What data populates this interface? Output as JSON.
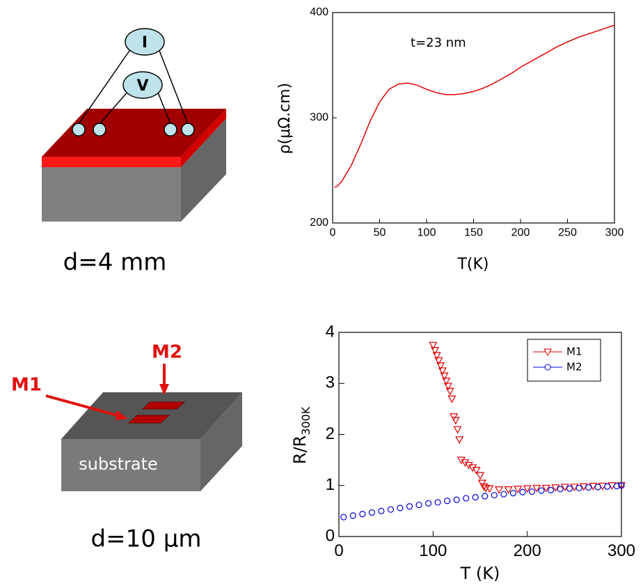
{
  "diagrams": [
    {
      "labels": [
        "I",
        "V"
      ],
      "caption": "d=4 mm"
    },
    {
      "labels": [
        "M1",
        "M2",
        "substrate"
      ],
      "caption": "d=10 μm"
    }
  ],
  "chart_data": [
    {
      "type": "line",
      "x_label": "T(K)",
      "y_label": "ρ(μΩ.cm)",
      "annotation": "t=23 nm",
      "xlim": [
        0,
        300
      ],
      "ylim": [
        200,
        400
      ],
      "xticks": [
        0,
        50,
        100,
        150,
        200,
        250,
        300
      ],
      "yticks": [
        200,
        300,
        400
      ],
      "series": [
        {
          "color": "#e00000",
          "x": [
            2,
            5,
            10,
            20,
            30,
            40,
            50,
            60,
            70,
            80,
            90,
            100,
            110,
            120,
            130,
            140,
            150,
            160,
            170,
            180,
            190,
            200,
            210,
            220,
            230,
            240,
            250,
            260,
            270,
            280,
            290,
            300
          ],
          "values": [
            234,
            235,
            240,
            255,
            275,
            297,
            315,
            327,
            332,
            333,
            331,
            327,
            324,
            322,
            322,
            323,
            325,
            328,
            332,
            337,
            342,
            348,
            353,
            358,
            363,
            368,
            372,
            376,
            379,
            382,
            385,
            388
          ]
        }
      ]
    },
    {
      "type": "scatter",
      "x_label": "T (K)",
      "y_label": "R/R",
      "y_label_sub": "300K",
      "xlim": [
        0,
        300
      ],
      "ylim": [
        0,
        4
      ],
      "xticks": [
        0,
        100,
        200,
        300
      ],
      "yticks": [
        0,
        1,
        2,
        3,
        4
      ],
      "legend": "upper right",
      "series": [
        {
          "name": "M1",
          "color": "#e00000",
          "marker": "triangle-down",
          "x": [
            100,
            102,
            104,
            106,
            108,
            110,
            112,
            114,
            116,
            118,
            120,
            122,
            124,
            126,
            128,
            130,
            134,
            138,
            142,
            146,
            150,
            152,
            154,
            156,
            160,
            170,
            180,
            190,
            200,
            210,
            220,
            230,
            240,
            250,
            260,
            270,
            280,
            290,
            300
          ],
          "values": [
            3.75,
            3.65,
            3.55,
            3.45,
            3.35,
            3.25,
            3.15,
            3.05,
            2.95,
            2.85,
            2.7,
            2.35,
            2.28,
            2.1,
            1.9,
            1.5,
            1.45,
            1.4,
            1.35,
            1.3,
            1.2,
            1.05,
            0.98,
            0.95,
            0.94,
            0.92,
            0.92,
            0.93,
            0.94,
            0.95,
            0.95,
            0.96,
            0.97,
            0.97,
            0.98,
            0.99,
            0.99,
            1.0,
            1.0
          ]
        },
        {
          "name": "M2",
          "color": "#0000e0",
          "marker": "circle",
          "x": [
            5,
            15,
            25,
            35,
            45,
            55,
            65,
            75,
            85,
            95,
            105,
            115,
            125,
            135,
            145,
            155,
            165,
            175,
            185,
            195,
            205,
            215,
            225,
            235,
            245,
            255,
            265,
            275,
            285,
            295,
            300
          ],
          "values": [
            0.38,
            0.41,
            0.44,
            0.47,
            0.5,
            0.53,
            0.56,
            0.59,
            0.62,
            0.65,
            0.67,
            0.7,
            0.72,
            0.75,
            0.77,
            0.79,
            0.81,
            0.83,
            0.85,
            0.87,
            0.88,
            0.9,
            0.91,
            0.93,
            0.94,
            0.95,
            0.96,
            0.97,
            0.98,
            0.99,
            1.0
          ]
        }
      ]
    }
  ]
}
